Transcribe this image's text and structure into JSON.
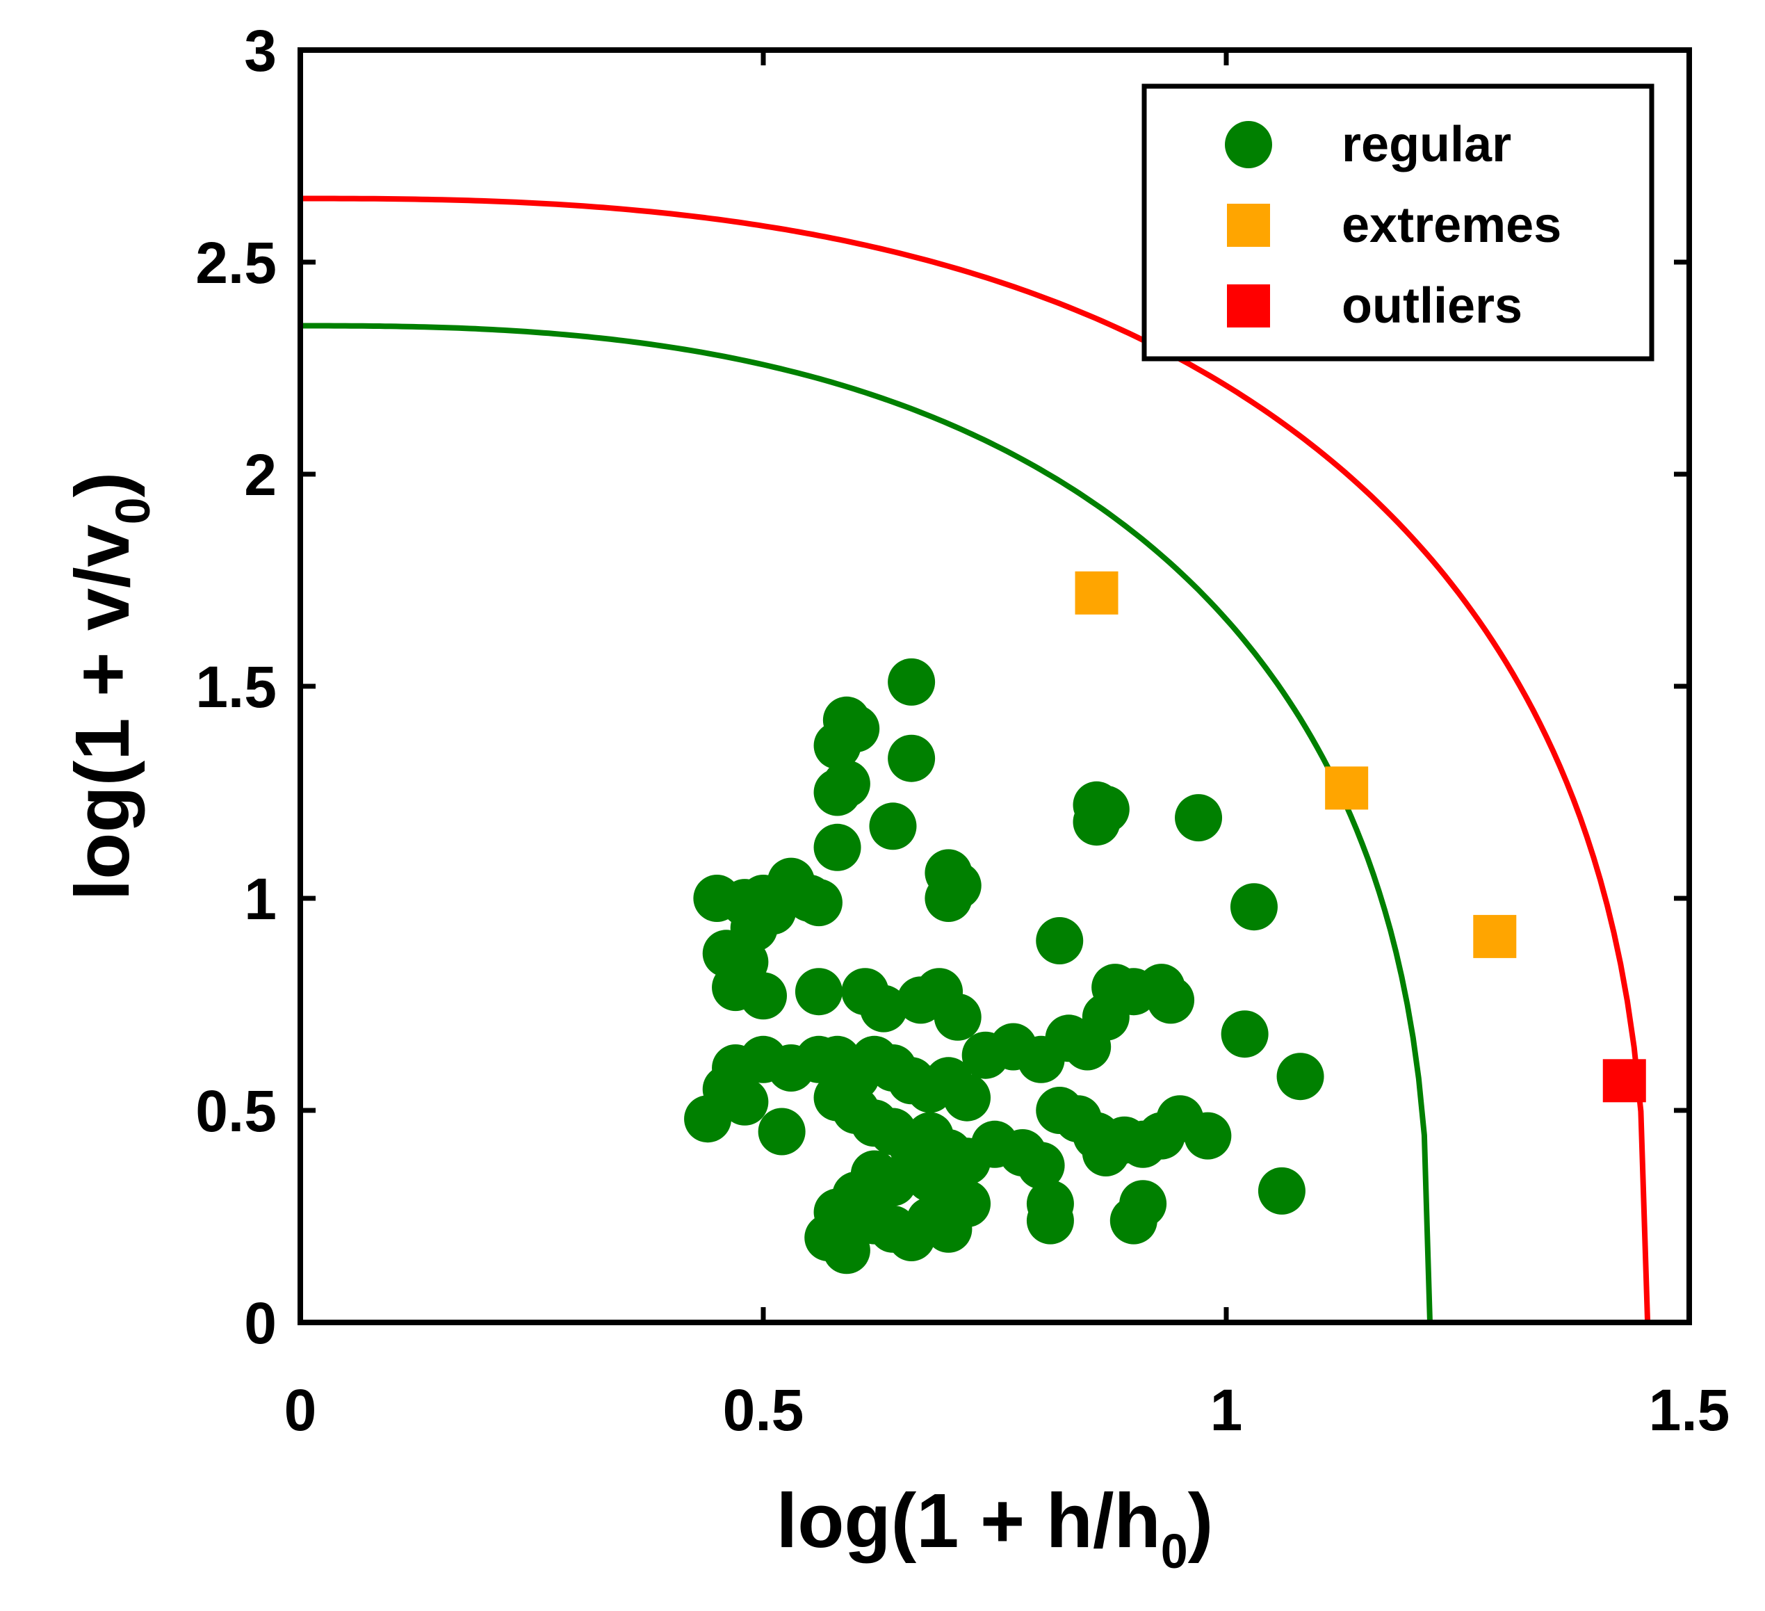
{
  "chart_data": {
    "type": "scatter",
    "title": "",
    "xlabel_main": "log(1 + h/h",
    "xlabel_sub": "0",
    "xlabel_end": ")",
    "ylabel_main": "log(1 + v/v",
    "ylabel_sub": "0",
    "ylabel_end": ")",
    "xlim": [
      0,
      1.5
    ],
    "ylim": [
      0,
      3
    ],
    "xticks": [
      0,
      0.5,
      1,
      1.5
    ],
    "yticks": [
      0,
      0.5,
      1,
      1.5,
      2,
      2.5,
      3
    ],
    "xtick_labels": [
      "0",
      "0.5",
      "1",
      "1.5"
    ],
    "ytick_labels": [
      "0",
      "0.5",
      "1",
      "1.5",
      "2",
      "2.5",
      "3"
    ],
    "legend_position": "top-right",
    "colors": {
      "regular": "#008000",
      "extremes": "#FFA500",
      "outliers": "#FF0000",
      "green_curve": "#008000",
      "red_curve": "#FF0000"
    },
    "curves": [
      {
        "name": "green_curve",
        "x_intercept": 1.22,
        "y_intercept": 2.35,
        "exponent": 2.6
      },
      {
        "name": "red_curve",
        "x_intercept": 1.455,
        "y_intercept": 2.65,
        "exponent": 2.6
      }
    ],
    "series": [
      {
        "name": "regular",
        "marker": "circle",
        "points": [
          [
            0.66,
            1.51
          ],
          [
            0.59,
            1.42
          ],
          [
            0.6,
            1.4
          ],
          [
            0.58,
            1.36
          ],
          [
            0.66,
            1.33
          ],
          [
            0.59,
            1.27
          ],
          [
            0.58,
            1.25
          ],
          [
            0.64,
            1.17
          ],
          [
            0.58,
            1.12
          ],
          [
            0.86,
            1.22
          ],
          [
            0.87,
            1.21
          ],
          [
            0.86,
            1.18
          ],
          [
            0.97,
            1.19
          ],
          [
            0.7,
            1.06
          ],
          [
            0.71,
            1.03
          ],
          [
            0.7,
            1.0
          ],
          [
            1.03,
            0.98
          ],
          [
            0.82,
            0.9
          ],
          [
            0.45,
            1.0
          ],
          [
            0.48,
            0.99
          ],
          [
            0.5,
            1.0
          ],
          [
            0.51,
            0.97
          ],
          [
            0.53,
            1.04
          ],
          [
            0.55,
            1.0
          ],
          [
            0.56,
            0.99
          ],
          [
            0.49,
            0.93
          ],
          [
            0.46,
            0.87
          ],
          [
            0.48,
            0.85
          ],
          [
            0.47,
            0.79
          ],
          [
            0.5,
            0.77
          ],
          [
            0.56,
            0.78
          ],
          [
            0.61,
            0.78
          ],
          [
            0.63,
            0.74
          ],
          [
            0.67,
            0.76
          ],
          [
            0.69,
            0.78
          ],
          [
            0.71,
            0.72
          ],
          [
            0.88,
            0.79
          ],
          [
            0.9,
            0.78
          ],
          [
            0.93,
            0.79
          ],
          [
            0.94,
            0.76
          ],
          [
            0.87,
            0.72
          ],
          [
            0.83,
            0.67
          ],
          [
            0.85,
            0.65
          ],
          [
            0.77,
            0.65
          ],
          [
            0.74,
            0.63
          ],
          [
            0.8,
            0.62
          ],
          [
            1.02,
            0.68
          ],
          [
            1.08,
            0.58
          ],
          [
            1.06,
            0.31
          ],
          [
            0.47,
            0.6
          ],
          [
            0.5,
            0.62
          ],
          [
            0.53,
            0.6
          ],
          [
            0.56,
            0.62
          ],
          [
            0.46,
            0.55
          ],
          [
            0.48,
            0.52
          ],
          [
            0.44,
            0.48
          ],
          [
            0.52,
            0.45
          ],
          [
            0.58,
            0.62
          ],
          [
            0.6,
            0.58
          ],
          [
            0.62,
            0.62
          ],
          [
            0.64,
            0.6
          ],
          [
            0.66,
            0.57
          ],
          [
            0.68,
            0.55
          ],
          [
            0.7,
            0.57
          ],
          [
            0.72,
            0.53
          ],
          [
            0.58,
            0.53
          ],
          [
            0.6,
            0.5
          ],
          [
            0.62,
            0.47
          ],
          [
            0.64,
            0.45
          ],
          [
            0.66,
            0.42
          ],
          [
            0.68,
            0.44
          ],
          [
            0.7,
            0.4
          ],
          [
            0.72,
            0.38
          ],
          [
            0.75,
            0.42
          ],
          [
            0.78,
            0.4
          ],
          [
            0.8,
            0.37
          ],
          [
            0.82,
            0.5
          ],
          [
            0.84,
            0.48
          ],
          [
            0.86,
            0.44
          ],
          [
            0.87,
            0.4
          ],
          [
            0.89,
            0.43
          ],
          [
            0.91,
            0.42
          ],
          [
            0.93,
            0.44
          ],
          [
            0.95,
            0.48
          ],
          [
            0.98,
            0.44
          ],
          [
            0.62,
            0.35
          ],
          [
            0.64,
            0.33
          ],
          [
            0.66,
            0.36
          ],
          [
            0.68,
            0.34
          ],
          [
            0.7,
            0.3
          ],
          [
            0.72,
            0.28
          ],
          [
            0.6,
            0.3
          ],
          [
            0.58,
            0.26
          ],
          [
            0.62,
            0.24
          ],
          [
            0.64,
            0.22
          ],
          [
            0.66,
            0.2
          ],
          [
            0.68,
            0.24
          ],
          [
            0.7,
            0.22
          ],
          [
            0.57,
            0.2
          ],
          [
            0.59,
            0.17
          ],
          [
            0.81,
            0.24
          ],
          [
            0.81,
            0.28
          ],
          [
            0.9,
            0.24
          ],
          [
            0.91,
            0.28
          ]
        ]
      },
      {
        "name": "extremes",
        "marker": "square",
        "points": [
          [
            0.86,
            1.72
          ],
          [
            1.13,
            1.26
          ],
          [
            1.29,
            0.91
          ]
        ]
      },
      {
        "name": "outliers",
        "marker": "square",
        "points": [
          [
            1.43,
            0.57
          ]
        ]
      }
    ],
    "legend": [
      {
        "label": "regular",
        "marker": "circle",
        "color": "#008000"
      },
      {
        "label": "extremes",
        "marker": "square",
        "color": "#FFA500"
      },
      {
        "label": "outliers",
        "marker": "square",
        "color": "#FF0000"
      }
    ]
  }
}
